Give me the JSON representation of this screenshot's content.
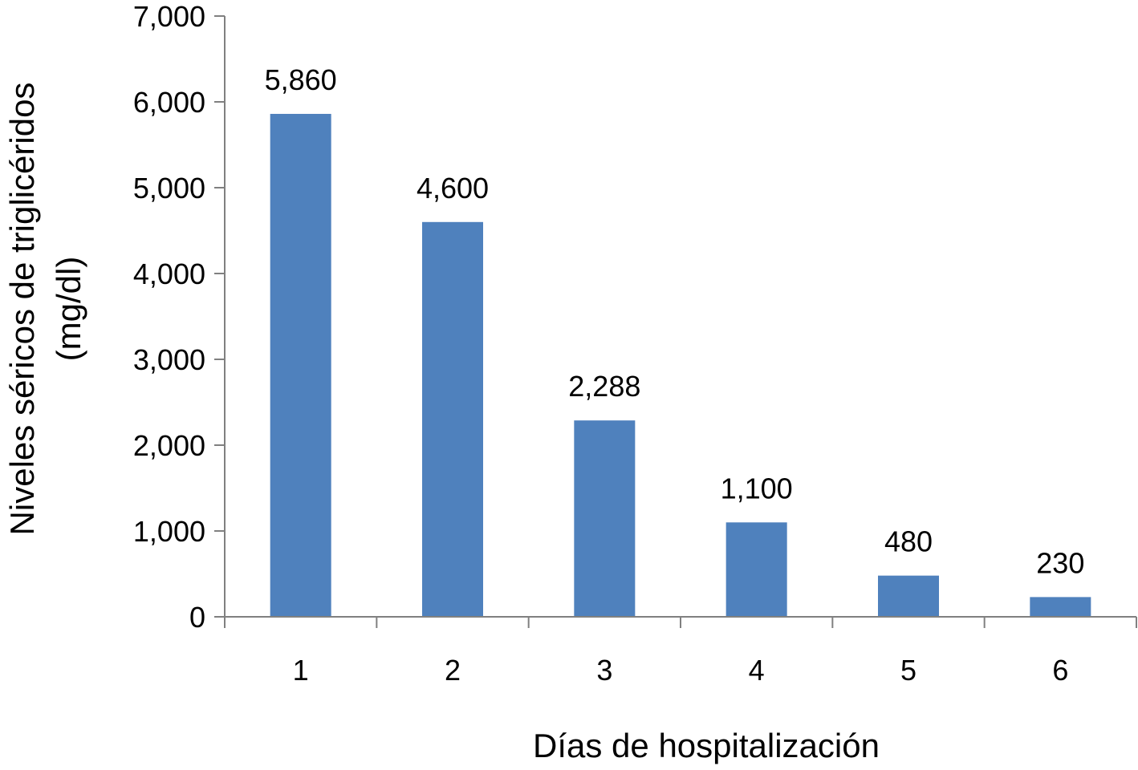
{
  "chart_data": {
    "type": "bar",
    "title": "",
    "xlabel": "Días de hospitalización",
    "ylabel": [
      "Niveles séricos de triglicéridos",
      "(mg/dl)"
    ],
    "categories": [
      "1",
      "2",
      "3",
      "4",
      "5",
      "6"
    ],
    "values": [
      5860,
      4600,
      2288,
      1100,
      480,
      230
    ],
    "data_labels": [
      "5,860",
      "4,600",
      "2,288",
      "1,100",
      "480",
      "230"
    ],
    "ylim": [
      0,
      7000
    ],
    "yticks": [
      0,
      1000,
      2000,
      3000,
      4000,
      5000,
      6000,
      7000
    ],
    "ytick_labels": [
      "0",
      "1,000",
      "2,000",
      "3,000",
      "4,000",
      "5,000",
      "6,000",
      "7,000"
    ],
    "grid": false,
    "legend": "none",
    "bar_color": "#4F81BD",
    "axis_color": "#808080"
  }
}
